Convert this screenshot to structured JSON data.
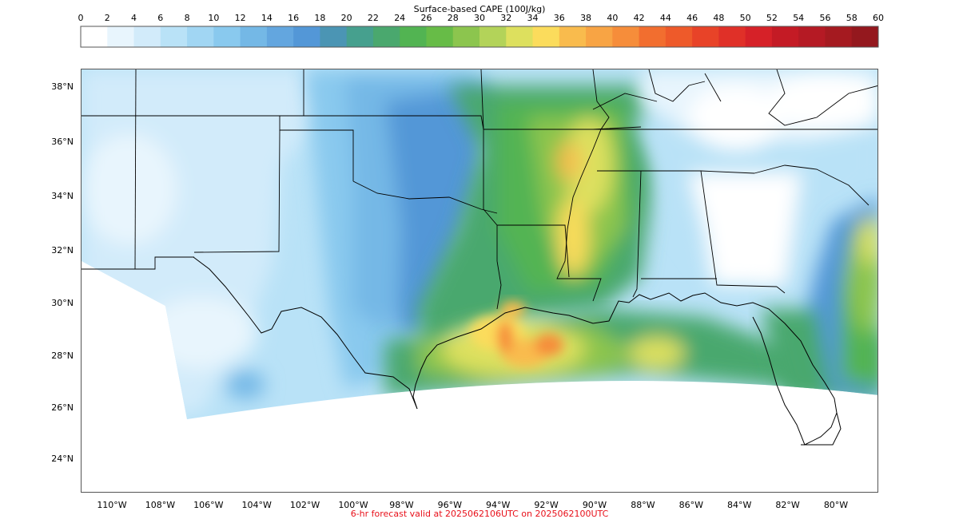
{
  "colorbar": {
    "title": "Surface-based CAPE (100J/kg)",
    "ticks": [
      "0",
      "2",
      "4",
      "6",
      "8",
      "10",
      "12",
      "14",
      "16",
      "18",
      "20",
      "22",
      "24",
      "26",
      "28",
      "30",
      "32",
      "34",
      "36",
      "38",
      "40",
      "42",
      "44",
      "46",
      "48",
      "50",
      "52",
      "54",
      "56",
      "58",
      "60"
    ],
    "colors": [
      "#ffffff",
      "#e8f5fd",
      "#d2ebfa",
      "#b9e2f7",
      "#a1d6f3",
      "#89c9ee",
      "#74b8e6",
      "#63a6df",
      "#5397d7",
      "#4b95b4",
      "#46a08e",
      "#4aa86e",
      "#52b452",
      "#67bc47",
      "#8cc54e",
      "#b3d359",
      "#dde05e",
      "#fbdc5c",
      "#f9bb4d",
      "#f8a444",
      "#f68d3a",
      "#f26e2f",
      "#ee5a2a",
      "#e84328",
      "#e03028",
      "#d62128",
      "#c41b25",
      "#b51a24",
      "#a51a20",
      "#94181e"
    ]
  },
  "axes": {
    "lat_labels": [
      "38°N",
      "36°N",
      "34°N",
      "32°N",
      "30°N",
      "28°N",
      "26°N",
      "24°N"
    ],
    "lon_labels": [
      "110°W",
      "108°W",
      "106°W",
      "104°W",
      "102°W",
      "100°W",
      "98°W",
      "96°W",
      "94°W",
      "92°W",
      "90°W",
      "88°W",
      "86°W",
      "84°W",
      "82°W",
      "80°W"
    ]
  },
  "caption": "6-hr forecast valid at 2025062106UTC on 2025062100UTC",
  "map": {
    "field": "CAPE",
    "land_color": "#9fd4f2",
    "no_data_color": "#ffffff",
    "border_color": "#000000"
  }
}
